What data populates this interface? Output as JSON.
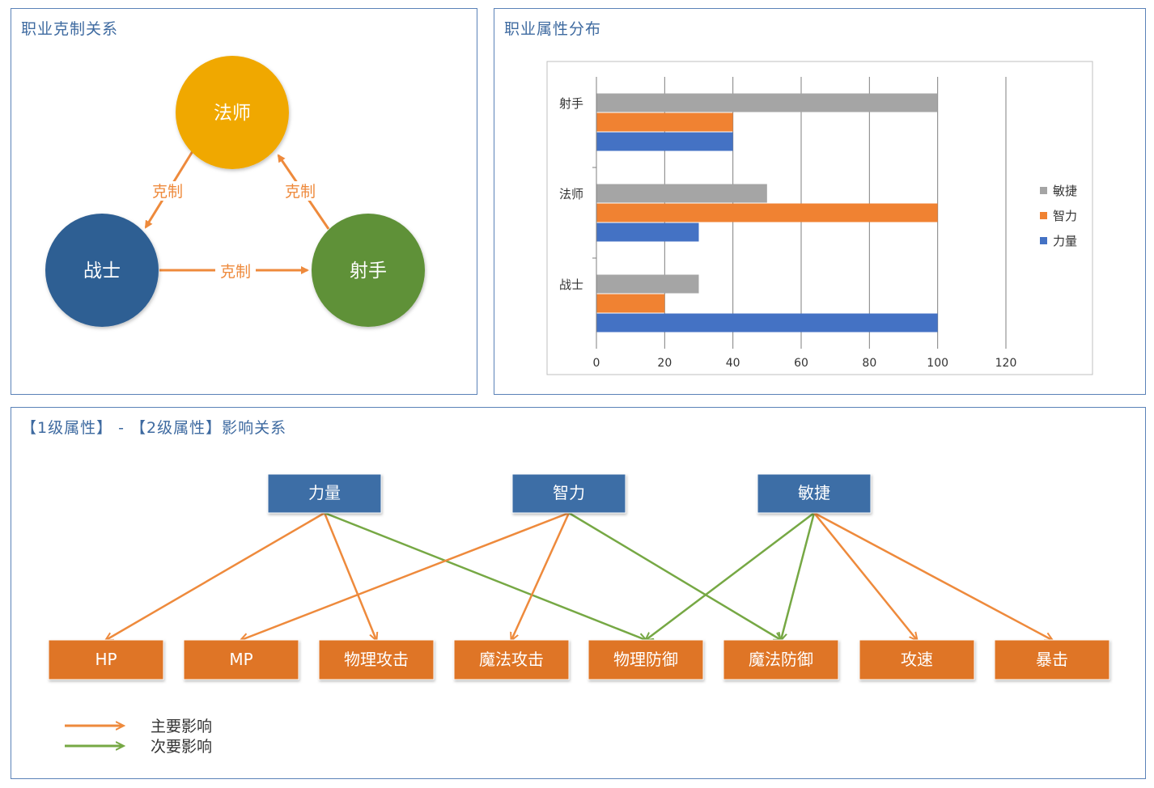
{
  "colors": {
    "primary": "#ee8a3c",
    "secondary": "#76a844",
    "class_top": "#f0a800",
    "class_left": "#2f5f93",
    "class_right": "#5f9137",
    "level1_box": "#3c6ea6",
    "level2_box": "#df7428",
    "bar_agility": "#a5a5a5",
    "bar_intellect": "#f08232",
    "bar_strength": "#4472c4"
  },
  "panel_counter": {
    "title": "职业克制关系",
    "nodes": {
      "top": "法师",
      "left": "战士",
      "right": "射手"
    },
    "edge_label": "克制"
  },
  "panel_attr": {
    "title": "职业属性分布"
  },
  "chart_data": {
    "type": "bar",
    "orientation": "horizontal",
    "categories": [
      "射手",
      "法师",
      "战士"
    ],
    "series": [
      {
        "name": "敏捷",
        "values": [
          100,
          50,
          30
        ]
      },
      {
        "name": "智力",
        "values": [
          40,
          100,
          20
        ]
      },
      {
        "name": "力量",
        "values": [
          40,
          30,
          100
        ]
      }
    ],
    "xlim": [
      0,
      120
    ],
    "ticks": [
      "0",
      "20",
      "40",
      "60",
      "80",
      "100",
      "120"
    ],
    "grid": true,
    "legend": "right"
  },
  "panel_influence": {
    "title": "【1级属性】 - 【2级属性】影响关系",
    "level1": [
      "力量",
      "智力",
      "敏捷"
    ],
    "level2": [
      "HP",
      "MP",
      "物理攻击",
      "魔法攻击",
      "物理防御",
      "魔法防御",
      "攻速",
      "暴击"
    ],
    "links": [
      {
        "from": 0,
        "to": 0,
        "kind": "primary"
      },
      {
        "from": 0,
        "to": 2,
        "kind": "primary"
      },
      {
        "from": 0,
        "to": 4,
        "kind": "secondary"
      },
      {
        "from": 1,
        "to": 1,
        "kind": "primary"
      },
      {
        "from": 1,
        "to": 3,
        "kind": "primary"
      },
      {
        "from": 1,
        "to": 5,
        "kind": "secondary"
      },
      {
        "from": 2,
        "to": 4,
        "kind": "secondary"
      },
      {
        "from": 2,
        "to": 5,
        "kind": "secondary"
      },
      {
        "from": 2,
        "to": 6,
        "kind": "primary"
      },
      {
        "from": 2,
        "to": 7,
        "kind": "primary"
      }
    ],
    "legend": {
      "primary": "主要影响",
      "secondary": "次要影响"
    }
  }
}
